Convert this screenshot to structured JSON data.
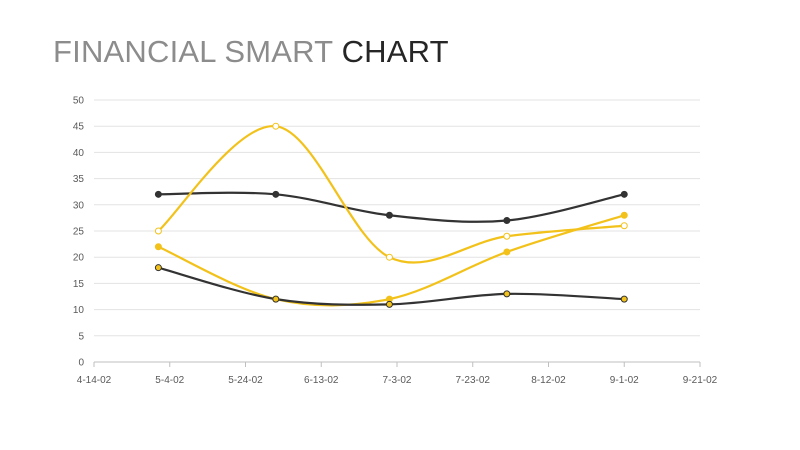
{
  "title": {
    "part1": "FINANCIAL SMART",
    "part2": "CHART"
  },
  "colors": {
    "dark": "#333333",
    "yellow": "#f2c21b",
    "grid": "#e3e3e3",
    "axis": "#bfbfbf",
    "text": "#595959"
  },
  "chart_data": {
    "type": "scatter",
    "title": "FINANCIAL SMART CHART",
    "xlabel": "",
    "ylabel": "",
    "x_ticks": [
      "4-14-02",
      "5-4-02",
      "5-24-02",
      "6-13-02",
      "7-3-02",
      "7-23-02",
      "8-12-02",
      "9-1-02",
      "9-21-02"
    ],
    "ylim": [
      0,
      50
    ],
    "y_ticks": [
      0,
      5,
      10,
      15,
      20,
      25,
      30,
      35,
      40,
      45,
      50
    ],
    "grid": "horizontal",
    "smooth_lines": true,
    "series": [
      {
        "color": "#333333",
        "marker": "filled",
        "x": [
          "5-1-02",
          "6-1-02",
          "7-1-02",
          "8-1-02",
          "9-1-02"
        ],
        "values": [
          32,
          32,
          28,
          27,
          32
        ]
      },
      {
        "color": "#f2c21b",
        "marker": "hollow",
        "x": [
          "5-1-02",
          "6-1-02",
          "7-1-02",
          "8-1-02",
          "9-1-02"
        ],
        "values": [
          25,
          45,
          20,
          24,
          26
        ]
      },
      {
        "color": "#f2c21b",
        "marker": "filled",
        "x": [
          "5-1-02",
          "6-1-02",
          "7-1-02",
          "8-1-02",
          "9-1-02"
        ],
        "values": [
          22,
          12,
          12,
          21,
          28
        ]
      },
      {
        "color": "#333333",
        "marker": "yellow-filled",
        "x": [
          "5-1-02",
          "6-1-02",
          "7-1-02",
          "8-1-02",
          "9-1-02"
        ],
        "values": [
          18,
          12,
          11,
          13,
          12
        ]
      }
    ]
  }
}
